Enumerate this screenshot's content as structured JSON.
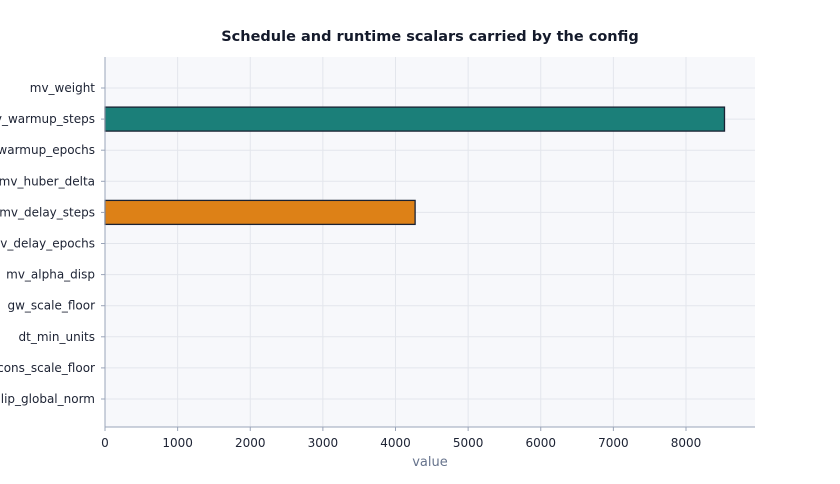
{
  "chart_data": {
    "type": "bar",
    "orientation": "horizontal",
    "title": "Schedule and runtime scalars carried by the config",
    "xlabel": "value",
    "ylabel": "",
    "categories": [
      "mv_weight",
      "mv_warmup_steps",
      "mv_warmup_epochs",
      "mv_huber_delta",
      "mv_delay_steps",
      "mv_delay_epochs",
      "mv_alpha_disp",
      "gw_scale_floor",
      "dt_min_units",
      "cons_scale_floor",
      "clip_global_norm"
    ],
    "values": [
      0,
      8530,
      0,
      0,
      4270,
      0,
      0,
      0,
      0,
      0,
      0
    ],
    "bar_colors": [
      "#1b7f79",
      "#1b7f79",
      "#1b7f79",
      "#1b7f79",
      "#dd8117",
      "#1b7f79",
      "#1b7f79",
      "#1b7f79",
      "#1b7f79",
      "#1b7f79",
      "#1b7f79"
    ],
    "xlim": [
      0,
      8950
    ],
    "xticks": [
      0,
      1000,
      2000,
      3000,
      4000,
      5000,
      6000,
      7000,
      8000
    ],
    "grid": true,
    "legend": "none",
    "colors": {
      "plot_background": "#f7f8fb",
      "grid": "#e3e6ec",
      "axis": "#9aa4b8",
      "bar_edge": "#1a2233",
      "title": "#141a2b",
      "tick_label": "#1c2233",
      "axis_label": "#66738c"
    }
  }
}
